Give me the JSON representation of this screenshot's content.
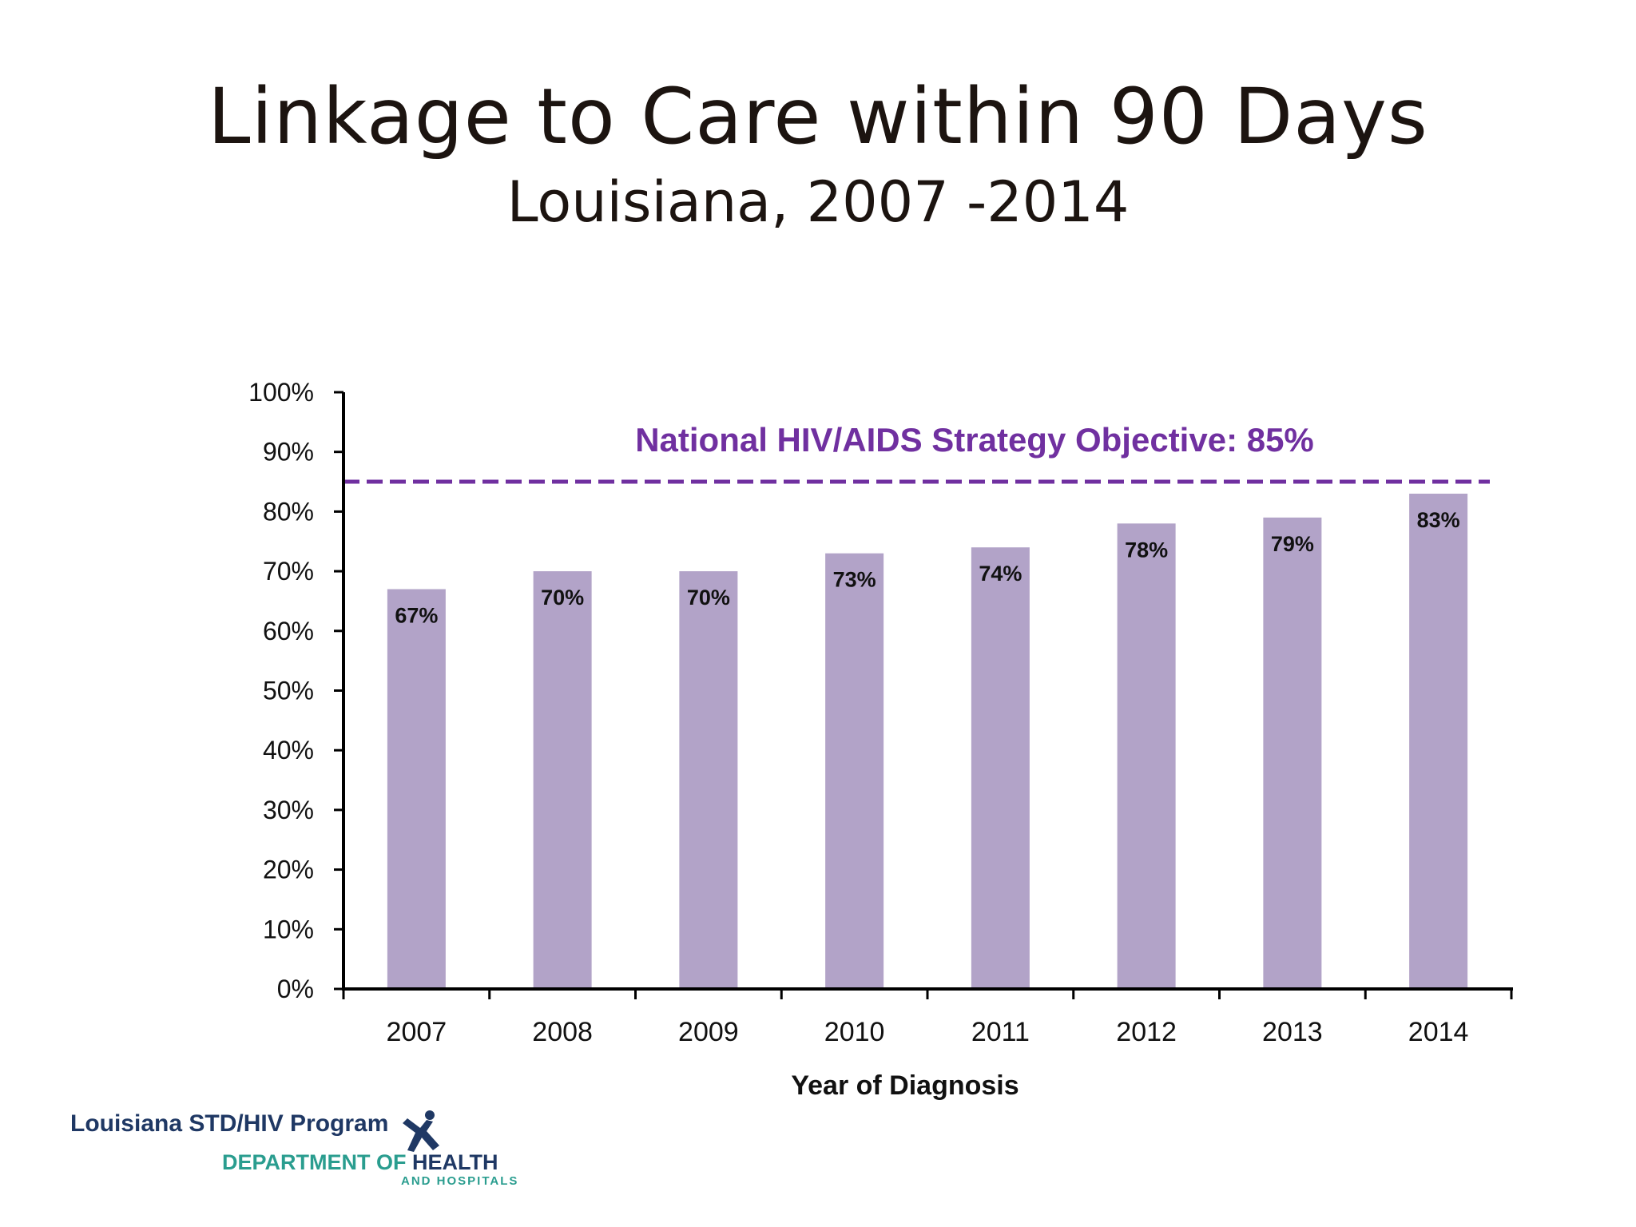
{
  "slide": {
    "title": "Linkage to Care within 90 Days",
    "subtitle": "Louisiana, 2007 -2014"
  },
  "footer": {
    "program": "Louisiana STD/HIV Program",
    "dept_prefix": "DEPARTMENT OF ",
    "dept_health": "HEALTH",
    "dept_sub": "AND HOSPITALS",
    "logo_icon": "running-figure-icon"
  },
  "colors": {
    "bar": "#b2a3c8",
    "objective_line": "#7030a0",
    "axis": "#000000"
  },
  "chart_data": {
    "type": "bar",
    "categories": [
      "2007",
      "2008",
      "2009",
      "2010",
      "2011",
      "2012",
      "2013",
      "2014"
    ],
    "values": [
      67,
      70,
      70,
      73,
      74,
      78,
      79,
      83
    ],
    "data_labels": [
      "67%",
      "70%",
      "70%",
      "73%",
      "74%",
      "78%",
      "79%",
      "83%"
    ],
    "xlabel": "Year of Diagnosis",
    "ylabel": "",
    "ylim": [
      0,
      100
    ],
    "yticks": [
      0,
      10,
      20,
      30,
      40,
      50,
      60,
      70,
      80,
      90,
      100
    ],
    "ytick_labels": [
      "0%",
      "10%",
      "20%",
      "30%",
      "40%",
      "50%",
      "60%",
      "70%",
      "80%",
      "90%",
      "100%"
    ],
    "grid": false,
    "reference_line": {
      "value": 85,
      "label": "National HIV/AIDS Strategy Objective:  85%",
      "style": "dashed"
    }
  }
}
